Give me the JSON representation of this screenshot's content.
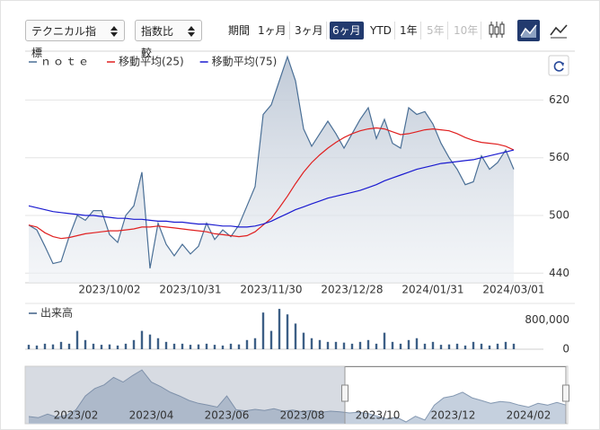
{
  "toolbar": {
    "technical": "テクニカル指標",
    "compare": "指数比較",
    "period_label": "期間",
    "periods": [
      {
        "label": "1ヶ月",
        "state": "enabled"
      },
      {
        "label": "3ヶ月",
        "state": "enabled"
      },
      {
        "label": "6ヶ月",
        "state": "active"
      },
      {
        "label": "YTD",
        "state": "enabled"
      },
      {
        "label": "1年",
        "state": "enabled"
      },
      {
        "label": "5年",
        "state": "disabled"
      },
      {
        "label": "10年",
        "state": "disabled"
      }
    ]
  },
  "chart_data": [
    {
      "type": "line",
      "categories": [
        null,
        null,
        null,
        null,
        null,
        null,
        null,
        null,
        null,
        null,
        "2023/10/02",
        null,
        null,
        null,
        null,
        null,
        null,
        null,
        null,
        null,
        "2023/10/31",
        null,
        null,
        null,
        null,
        null,
        null,
        null,
        null,
        null,
        "2023/11/30",
        null,
        null,
        null,
        null,
        null,
        null,
        null,
        null,
        null,
        "2023/12/28",
        null,
        null,
        null,
        null,
        null,
        null,
        null,
        null,
        null,
        "2024/01/31",
        null,
        null,
        null,
        null,
        null,
        null,
        null,
        null,
        null,
        "2024/03/01"
      ],
      "series": [
        {
          "name": "ｎｏｔｅ",
          "color": "#4a6f96",
          "fill": true,
          "values": [
            490,
            485,
            468,
            450,
            452,
            478,
            500,
            495,
            505,
            505,
            480,
            472,
            500,
            510,
            545,
            445,
            492,
            470,
            458,
            470,
            460,
            468,
            492,
            475,
            485,
            478,
            490,
            510,
            530,
            605,
            615,
            640,
            665,
            640,
            590,
            572,
            585,
            598,
            585,
            570,
            585,
            600,
            612,
            580,
            600,
            575,
            570,
            612,
            605,
            608,
            595,
            575,
            560,
            548,
            532,
            535,
            562,
            548,
            555,
            568,
            548
          ]
        },
        {
          "name": "移動平均(25)",
          "color": "#e02020",
          "fill": false,
          "values": [
            490,
            488,
            482,
            478,
            476,
            477,
            479,
            481,
            482,
            483,
            484,
            484,
            485,
            486,
            488,
            488,
            489,
            488,
            487,
            486,
            485,
            484,
            483,
            481,
            480,
            479,
            478,
            479,
            483,
            490,
            497,
            508,
            520,
            533,
            545,
            555,
            563,
            570,
            576,
            581,
            585,
            588,
            590,
            591,
            590,
            587,
            584,
            585,
            587,
            589,
            590,
            589,
            588,
            585,
            581,
            578,
            576,
            575,
            574,
            572,
            568
          ]
        },
        {
          "name": "移動平均(75)",
          "color": "#1a1ad0",
          "fill": false,
          "values": [
            510,
            508,
            506,
            504,
            503,
            502,
            501,
            500,
            500,
            499,
            498,
            497,
            497,
            496,
            496,
            495,
            494,
            494,
            493,
            493,
            492,
            491,
            491,
            490,
            489,
            489,
            488,
            488,
            489,
            491,
            494,
            498,
            502,
            506,
            509,
            512,
            515,
            518,
            520,
            522,
            524,
            526,
            529,
            532,
            536,
            539,
            542,
            545,
            548,
            550,
            552,
            554,
            555,
            556,
            557,
            558,
            560,
            562,
            564,
            566,
            568
          ]
        }
      ],
      "ylim": [
        430,
        668
      ],
      "yticks": [
        440,
        500,
        560,
        620
      ],
      "grid": true
    },
    {
      "type": "bar",
      "title": "出来高",
      "color": "#3d5f86",
      "values": [
        120000,
        100000,
        150000,
        130000,
        200000,
        150000,
        500000,
        250000,
        150000,
        120000,
        130000,
        100000,
        150000,
        250000,
        500000,
        400000,
        300000,
        200000,
        150000,
        150000,
        120000,
        130000,
        150000,
        120000,
        100000,
        150000,
        130000,
        250000,
        300000,
        1000000,
        500000,
        1100000,
        950000,
        700000,
        450000,
        300000,
        250000,
        200000,
        200000,
        180000,
        150000,
        200000,
        250000,
        150000,
        450000,
        200000,
        150000,
        250000,
        300000,
        150000,
        200000,
        120000,
        130000,
        150000,
        100000,
        200000,
        150000,
        100000,
        150000,
        200000,
        150000
      ],
      "ylim": [
        0,
        1200000
      ],
      "yticks": [
        0,
        {
          "value": 800000,
          "label": "800,000"
        }
      ],
      "grid": false
    },
    {
      "type": "area",
      "color": "#8599b2",
      "categories": [
        null,
        null,
        null,
        null,
        null,
        "2023/02",
        null,
        null,
        null,
        null,
        null,
        null,
        null,
        "2023/04",
        null,
        null,
        null,
        null,
        null,
        null,
        null,
        "2023/06",
        null,
        null,
        null,
        null,
        null,
        null,
        null,
        "2023/08",
        null,
        null,
        null,
        null,
        null,
        null,
        null,
        "2023/10",
        null,
        null,
        null,
        null,
        null,
        null,
        null,
        "2023/12",
        null,
        null,
        null,
        null,
        null,
        null,
        null,
        "2024/02",
        null,
        null,
        null,
        null
      ],
      "values": [
        480,
        470,
        500,
        475,
        490,
        536,
        652,
        714,
        745,
        807,
        768,
        822,
        869,
        768,
        730,
        683,
        652,
        614,
        590,
        575,
        559,
        652,
        536,
        528,
        540,
        530,
        545,
        525,
        535,
        520,
        530,
        515,
        525,
        520,
        510,
        515,
        505,
        482,
        459,
        474,
        435,
        482,
        451,
        575,
        637,
        652,
        683,
        637,
        614,
        590,
        606,
        598,
        575,
        559,
        590,
        575,
        598,
        575
      ],
      "ylim": [
        420,
        900
      ]
    }
  ]
}
